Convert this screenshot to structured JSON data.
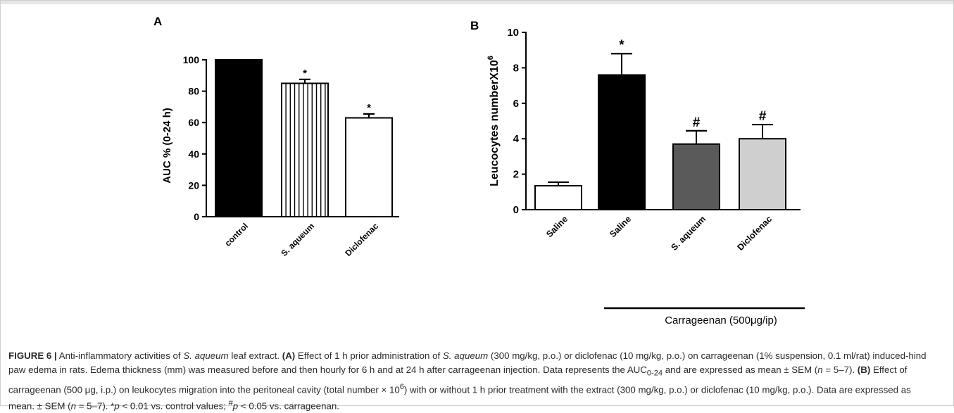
{
  "chart_data": [
    {
      "type": "bar",
      "panel_label": "A",
      "ylabel": "AUC % (0-24 h)",
      "categories": [
        "control",
        "S. aqueum",
        "Diclofenac"
      ],
      "values": [
        100,
        85,
        63
      ],
      "errors": [
        0,
        2.5,
        2.5
      ],
      "annotations": [
        "",
        "*",
        "*"
      ],
      "fills": [
        "#000000",
        "vertical-stripes",
        "#ffffff"
      ],
      "ylim": [
        0,
        100
      ],
      "yticks": [
        "0",
        "20",
        "40",
        "60",
        "80",
        "100"
      ],
      "ytick_values": [
        0,
        20,
        40,
        60,
        80,
        100
      ]
    },
    {
      "type": "bar",
      "panel_label": "B",
      "ylabel": "Leucocytes number",
      "ylabel_suffix": "X10",
      "ylabel_exponent": "6",
      "categories": [
        "Saline",
        "Saline",
        "S. aqueum",
        "Diclofenac"
      ],
      "values": [
        1.35,
        7.6,
        3.7,
        4.0
      ],
      "errors": [
        0.2,
        1.2,
        0.75,
        0.8
      ],
      "annotations": [
        "",
        "*",
        "#",
        "#"
      ],
      "fills": [
        "#ffffff",
        "#000000",
        "#5a5a5a",
        "#cfcfcf"
      ],
      "ylim": [
        0,
        10
      ],
      "yticks": [
        "0",
        "2",
        "4",
        "6",
        "8",
        "10"
      ],
      "ytick_values": [
        0,
        2,
        4,
        6,
        8,
        10
      ],
      "group_label": "Carrageenan (500μg/ip)"
    }
  ],
  "caption": {
    "figure_label": "FIGURE 6 |",
    "part1": " Anti-inflammatory activities of ",
    "species1": "S. aqueum",
    "part2": " leaf extract. ",
    "labelA": "(A)",
    "part3": " Effect of 1 h prior administration of ",
    "species2": "S. aqueum",
    "part4": " (300 mg/kg, p.o.) or diclofenac (10 mg/kg, p.o.) on carrageenan (1% suspension, 0.1 ml/rat) induced-hind paw edema in rats. Edema thickness (mm) was measured before and then hourly for 6 h and at 24 h after carrageenan injection. Data represents the AUC",
    "auc_sub": "0-24",
    "part5": " and are expressed as mean ± SEM (",
    "n1": "n",
    "part6": " = 5–7). ",
    "labelB": "(B)",
    "part7": " Effect of carrageenan (500 μg, i.p.) on leukocytes migration into the peritoneal cavity (total number × 10",
    "exp6": "6",
    "part8": ") with or without 1 h prior treatment with the extract (300 mg/kg, p.o.) or diclofenac (10 mg/kg, p.o.). Data are expressed as mean. ± SEM (",
    "n2": "n",
    "part9": " = 5–7). *",
    "p1": "p",
    "part10": " < 0.01 vs. control values; ",
    "hash": "#",
    "p2": "p",
    "part11": " < 0.05 vs. carrageenan."
  }
}
